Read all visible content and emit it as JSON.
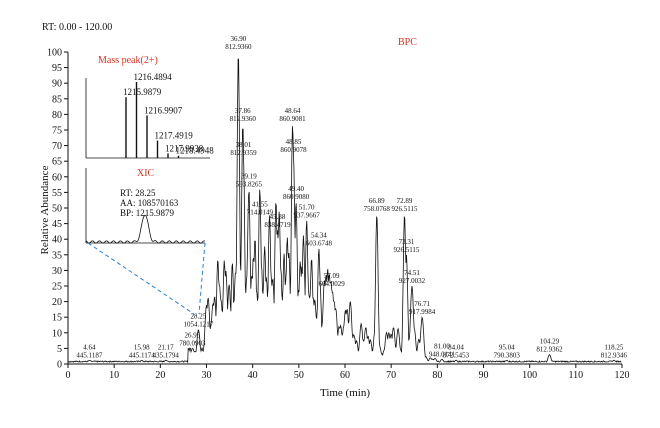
{
  "chart_data": {
    "type": "line",
    "rt_range_label": "RT: 0.00 - 120.00",
    "title": "BPC",
    "xlabel": "Time (min)",
    "ylabel": "Relative Abundance",
    "xlim": [
      0,
      120
    ],
    "ylim": [
      0,
      100
    ],
    "x_ticks": [
      0,
      10,
      20,
      30,
      40,
      50,
      60,
      70,
      80,
      90,
      100,
      110,
      120
    ],
    "y_ticks": [
      0,
      5,
      10,
      15,
      20,
      25,
      30,
      35,
      40,
      45,
      50,
      55,
      60,
      65,
      70,
      75,
      80,
      85,
      90,
      95,
      100
    ],
    "peaks": [
      {
        "rt": 4.64,
        "mz": "445.1187",
        "y": 1.2
      },
      {
        "rt": 15.98,
        "mz": "445.1174",
        "y": 1.2
      },
      {
        "rt": 21.17,
        "mz": "435.1794",
        "y": 1.2
      },
      {
        "rt": 26.95,
        "mz": "780.0903",
        "y": 5
      },
      {
        "rt": 28.25,
        "mz": "1054.1217",
        "y": 11
      },
      {
        "rt": 36.9,
        "mz": "812.9360",
        "y": 100
      },
      {
        "rt": 37.86,
        "mz": "812.9360",
        "y": 77
      },
      {
        "rt": 38.01,
        "mz": "812.9359",
        "y": 66
      },
      {
        "rt": 39.19,
        "mz": "593.8265",
        "y": 56
      },
      {
        "rt": 41.55,
        "mz": "714.0149",
        "y": 47
      },
      {
        "rt": 45.38,
        "mz": "838.4719",
        "y": 43
      },
      {
        "rt": 48.64,
        "mz": "860.9081",
        "y": 77
      },
      {
        "rt": 48.85,
        "mz": "860.9078",
        "y": 67
      },
      {
        "rt": 49.4,
        "mz": "860.9080",
        "y": 52
      },
      {
        "rt": 51.7,
        "mz": "937.9667",
        "y": 46
      },
      {
        "rt": 54.34,
        "mz": "603.6748",
        "y": 37
      },
      {
        "rt": 57.09,
        "mz": "604.0029",
        "y": 24
      },
      {
        "rt": 66.89,
        "mz": "758.0768",
        "y": 48
      },
      {
        "rt": 72.89,
        "mz": "926.5115",
        "y": 48
      },
      {
        "rt": 73.31,
        "mz": "926.5115",
        "y": 35
      },
      {
        "rt": 74.51,
        "mz": "927.0032",
        "y": 25
      },
      {
        "rt": 76.71,
        "mz": "917.9984",
        "y": 15
      },
      {
        "rt": 81.0,
        "mz": "948.0141",
        "y": 1.5
      },
      {
        "rt": 84.04,
        "mz": "872.5453",
        "y": 1.2
      },
      {
        "rt": 95.04,
        "mz": "790.3803",
        "y": 1.2
      },
      {
        "rt": 104.29,
        "mz": "812.9362",
        "y": 3
      },
      {
        "rt": 118.25,
        "mz": "812.9346",
        "y": 1.2
      }
    ],
    "inset_mass": {
      "title": "Mass peak(2+)",
      "peaks": [
        {
          "mz": "1215.9879",
          "rel": 0.8
        },
        {
          "mz": "1216.4894",
          "rel": 1.0
        },
        {
          "mz": "1216.9907",
          "rel": 0.56
        },
        {
          "mz": "1217.4919",
          "rel": 0.23
        },
        {
          "mz": "1217.9938",
          "rel": 0.06
        },
        {
          "mz": "1218.4948",
          "rel": 0.03
        }
      ]
    },
    "inset_xic": {
      "title": "XIC",
      "rt_line": "RT: 28.25",
      "aa_line": "AA: 108570163",
      "bp_line": "BP: 1215.9879"
    },
    "colors": {
      "line": "#111111",
      "accent": "#d9301e",
      "dash": "#2a7fd4",
      "rt_range": "#2a3aa0"
    }
  }
}
